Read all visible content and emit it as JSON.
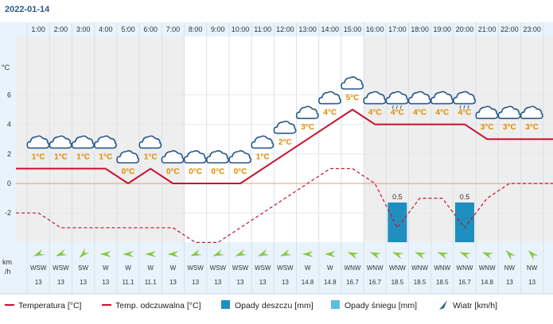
{
  "date": "2022-01-14",
  "chart_data": {
    "type": "line",
    "x": [
      "1:00",
      "2:00",
      "3:00",
      "4:00",
      "5:00",
      "6:00",
      "7:00",
      "8:00",
      "9:00",
      "10:00",
      "11:00",
      "12:00",
      "13:00",
      "14:00",
      "15:00",
      "16:00",
      "17:00",
      "18:00",
      "19:00",
      "20:00",
      "21:00",
      "22:00",
      "23:00"
    ],
    "y_ticks": [
      "6",
      "4",
      "2",
      "0",
      "-2"
    ],
    "y_unit": "°C",
    "ylim": [
      -4,
      8
    ],
    "series": [
      {
        "name": "Temperatura [°C]",
        "color": "#c8102e",
        "style": "solid",
        "values": [
          1,
          1,
          1,
          1,
          0,
          1,
          0,
          0,
          0,
          0,
          1,
          2,
          3,
          4,
          5,
          4,
          4,
          4,
          4,
          4,
          3,
          3,
          3
        ]
      },
      {
        "name": "Temp. odczuwalna [°C]",
        "color": "#c8102e",
        "style": "dashed",
        "values": [
          -2,
          -3,
          -3,
          -3,
          -3,
          -3,
          -3,
          -4,
          -4,
          -3,
          -2,
          -1,
          0,
          1,
          1,
          0,
          -3,
          -1,
          -1,
          -3,
          -1,
          0,
          0
        ]
      }
    ],
    "temp_labels": [
      "1°C",
      "1°C",
      "1°C",
      "1°C",
      "0°C",
      "1°C",
      "0°C",
      "0°C",
      "0°C",
      "0°C",
      "1°C",
      "2°C",
      "3°C",
      "4°C",
      "5°C",
      "4°C",
      "4°C",
      "4°C",
      "4°C",
      "4°C",
      "3°C",
      "3°C",
      "3°C"
    ],
    "weather_icons": [
      "cloud-icon",
      "cloud-icon",
      "cloud-icon",
      "cloud-icon",
      "cloud-icon",
      "cloud-icon",
      "cloud-icon",
      "cloud-icon",
      "cloud-icon",
      "cloud-icon",
      "cloud-icon",
      "cloud-icon",
      "cloud-icon",
      "cloud-icon",
      "cloud-icon",
      "cloud-icon",
      "cloud-rain-icon",
      "cloud-icon",
      "cloud-icon",
      "cloud-rain-icon",
      "cloud-icon",
      "cloud-icon",
      "cloud-icon"
    ],
    "rain": [
      {
        "hour": "17:00",
        "value": 0.5,
        "label": "0.5"
      },
      {
        "hour": "20:00",
        "value": 0.5,
        "label": "0.5"
      }
    ],
    "rain_colors": {
      "rain": "#1f8fc0",
      "snow": "#5bbedf"
    },
    "wind": {
      "unit_label_1": "km",
      "unit_label_2": "/h",
      "directions": [
        "WSW",
        "WSW",
        "SW",
        "W",
        "W",
        "W",
        "W",
        "WSW",
        "WSW",
        "WSW",
        "WSW",
        "WSW",
        "W",
        "W",
        "WNW",
        "WNW",
        "WNW",
        "WNW",
        "WNW",
        "WNW",
        "WNW",
        "NW",
        "NW"
      ],
      "speeds": [
        "13",
        "13",
        "13",
        "13",
        "11.1",
        "11.1",
        "13",
        "13",
        "13",
        "13",
        "13",
        "13",
        "14.8",
        "14.8",
        "16.7",
        "16.7",
        "18.5",
        "18.5",
        "18.5",
        "16.7",
        "14.8",
        "13",
        "13"
      ],
      "arrow_color": "#8dc63f"
    },
    "night_band_color": "#eeeeee",
    "legend": [
      {
        "label": "Temperatura [°C]",
        "kind": "line"
      },
      {
        "label": "Temp. odczuwalna [°C]",
        "kind": "dashed"
      },
      {
        "label": "Opady deszczu [mm]",
        "kind": "rain"
      },
      {
        "label": "Opady śniegu [mm]",
        "kind": "snow"
      },
      {
        "label": "Wiatr [km/h]",
        "kind": "wind"
      }
    ]
  }
}
